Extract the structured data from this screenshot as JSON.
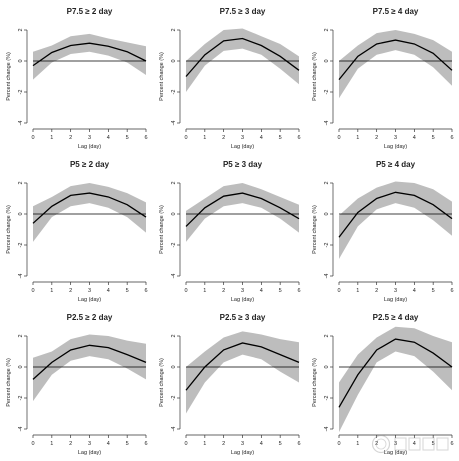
{
  "figure": {
    "xlabel": "Lag (day)",
    "ylabel": "Percent change (%)"
  },
  "colors": {
    "band": "#bdbdbd",
    "line": "#000000",
    "zero": "#000000",
    "axis": "#333333"
  },
  "chart_data": [
    {
      "type": "area",
      "title": "P7.5 ≥ 2 day",
      "xlim": [
        0,
        6
      ],
      "ylim": [
        -4,
        2
      ],
      "xticks": [
        0,
        1,
        2,
        3,
        4,
        5,
        6
      ],
      "yticks": [
        -4,
        -2,
        0,
        2
      ],
      "x": [
        0,
        1,
        2,
        3,
        4,
        5,
        6
      ],
      "estimate": [
        -0.3,
        0.55,
        1.0,
        1.15,
        0.95,
        0.6,
        0.0
      ],
      "lower": [
        -1.2,
        -0.1,
        0.45,
        0.6,
        0.35,
        -0.1,
        -0.9
      ],
      "upper": [
        0.6,
        1.0,
        1.6,
        1.75,
        1.45,
        1.2,
        0.95
      ]
    },
    {
      "type": "area",
      "title": "P7.5 ≥ 3 day",
      "xlim": [
        0,
        6
      ],
      "ylim": [
        -4,
        2
      ],
      "xticks": [
        0,
        1,
        2,
        3,
        4,
        5,
        6
      ],
      "yticks": [
        -4,
        -2,
        0,
        2
      ],
      "x": [
        0,
        1,
        2,
        3,
        4,
        5,
        6
      ],
      "estimate": [
        -1.0,
        0.4,
        1.3,
        1.45,
        1.0,
        0.3,
        -0.6
      ],
      "lower": [
        -2.0,
        -0.3,
        0.65,
        0.8,
        0.4,
        -0.5,
        -1.5
      ],
      "upper": [
        0.0,
        1.1,
        2.0,
        2.1,
        1.6,
        1.1,
        0.3
      ]
    },
    {
      "type": "area",
      "title": "P7.5 ≥ 4 day",
      "xlim": [
        0,
        6
      ],
      "ylim": [
        -4,
        2
      ],
      "xticks": [
        0,
        1,
        2,
        3,
        4,
        5,
        6
      ],
      "yticks": [
        -4,
        -2,
        0,
        2
      ],
      "x": [
        0,
        1,
        2,
        3,
        4,
        5,
        6
      ],
      "estimate": [
        -1.2,
        0.3,
        1.1,
        1.35,
        1.1,
        0.5,
        -0.6
      ],
      "lower": [
        -2.4,
        -0.5,
        0.4,
        0.7,
        0.4,
        -0.4,
        -1.6
      ],
      "upper": [
        0.0,
        1.0,
        1.8,
        2.0,
        1.75,
        1.35,
        0.6
      ]
    },
    {
      "type": "area",
      "title": "P5 ≥ 2 day",
      "xlim": [
        0,
        6
      ],
      "ylim": [
        -4,
        2
      ],
      "xticks": [
        0,
        1,
        2,
        3,
        4,
        5,
        6
      ],
      "yticks": [
        -4,
        -2,
        0,
        2
      ],
      "x": [
        0,
        1,
        2,
        3,
        4,
        5,
        6
      ],
      "estimate": [
        -0.6,
        0.5,
        1.2,
        1.35,
        1.1,
        0.6,
        -0.2
      ],
      "lower": [
        -1.8,
        -0.2,
        0.5,
        0.7,
        0.4,
        -0.2,
        -1.2
      ],
      "upper": [
        0.5,
        1.1,
        1.8,
        2.0,
        1.75,
        1.35,
        0.75
      ]
    },
    {
      "type": "area",
      "title": "P5 ≥ 3 day",
      "xlim": [
        0,
        6
      ],
      "ylim": [
        -4,
        2
      ],
      "xticks": [
        0,
        1,
        2,
        3,
        4,
        5,
        6
      ],
      "yticks": [
        -4,
        -2,
        0,
        2
      ],
      "x": [
        0,
        1,
        2,
        3,
        4,
        5,
        6
      ],
      "estimate": [
        -0.8,
        0.4,
        1.15,
        1.35,
        1.0,
        0.4,
        -0.3
      ],
      "lower": [
        -1.8,
        -0.3,
        0.5,
        0.7,
        0.4,
        -0.3,
        -1.2
      ],
      "upper": [
        0.2,
        1.0,
        1.8,
        2.0,
        1.6,
        1.1,
        0.6
      ]
    },
    {
      "type": "area",
      "title": "P5 ≥ 4 day",
      "xlim": [
        0,
        6
      ],
      "ylim": [
        -4,
        2
      ],
      "xticks": [
        0,
        1,
        2,
        3,
        4,
        5,
        6
      ],
      "yticks": [
        -4,
        -2,
        0,
        2
      ],
      "x": [
        0,
        1,
        2,
        3,
        4,
        5,
        6
      ],
      "estimate": [
        -1.5,
        0.1,
        1.0,
        1.4,
        1.2,
        0.6,
        -0.3
      ],
      "lower": [
        -2.9,
        -0.8,
        0.3,
        0.7,
        0.4,
        -0.4,
        -1.4
      ],
      "upper": [
        -0.1,
        1.0,
        1.7,
        2.1,
        2.0,
        1.6,
        0.8
      ]
    },
    {
      "type": "area",
      "title": "P2.5 ≥ 2 day",
      "xlim": [
        0,
        6
      ],
      "ylim": [
        -4,
        2
      ],
      "xticks": [
        0,
        1,
        2,
        3,
        4,
        5,
        6
      ],
      "yticks": [
        -4,
        -2,
        0,
        2
      ],
      "x": [
        0,
        1,
        2,
        3,
        4,
        5,
        6
      ],
      "estimate": [
        -0.8,
        0.3,
        1.1,
        1.4,
        1.25,
        0.8,
        0.3
      ],
      "lower": [
        -2.2,
        -0.5,
        0.4,
        0.7,
        0.5,
        -0.1,
        -0.8
      ],
      "upper": [
        0.6,
        1.0,
        1.8,
        2.1,
        2.0,
        1.7,
        1.5
      ]
    },
    {
      "type": "area",
      "title": "P2.5 ≥ 3 day",
      "xlim": [
        0,
        6
      ],
      "ylim": [
        -4,
        2
      ],
      "xticks": [
        0,
        1,
        2,
        3,
        4,
        5,
        6
      ],
      "yticks": [
        -4,
        -2,
        0,
        2
      ],
      "x": [
        0,
        1,
        2,
        3,
        4,
        5,
        6
      ],
      "estimate": [
        -1.5,
        0.0,
        1.1,
        1.55,
        1.3,
        0.8,
        0.3
      ],
      "lower": [
        -3.0,
        -1.0,
        0.3,
        0.8,
        0.5,
        -0.3,
        -1.0
      ],
      "upper": [
        0.0,
        1.0,
        1.9,
        2.3,
        2.1,
        1.8,
        1.6
      ]
    },
    {
      "type": "area",
      "title": "P2.5 ≥ 4 day",
      "xlim": [
        0,
        6
      ],
      "ylim": [
        -4,
        2
      ],
      "xticks": [
        0,
        1,
        2,
        3,
        4,
        5,
        6
      ],
      "yticks": [
        -4,
        -2,
        0,
        2
      ],
      "x": [
        0,
        1,
        2,
        3,
        4,
        5,
        6
      ],
      "estimate": [
        -2.6,
        -0.5,
        1.1,
        1.8,
        1.6,
        0.9,
        0.0
      ],
      "lower": [
        -4.2,
        -1.8,
        0.3,
        1.0,
        0.7,
        -0.3,
        -1.5
      ],
      "upper": [
        -1.0,
        0.8,
        1.9,
        2.6,
        2.5,
        2.0,
        1.6
      ]
    }
  ]
}
